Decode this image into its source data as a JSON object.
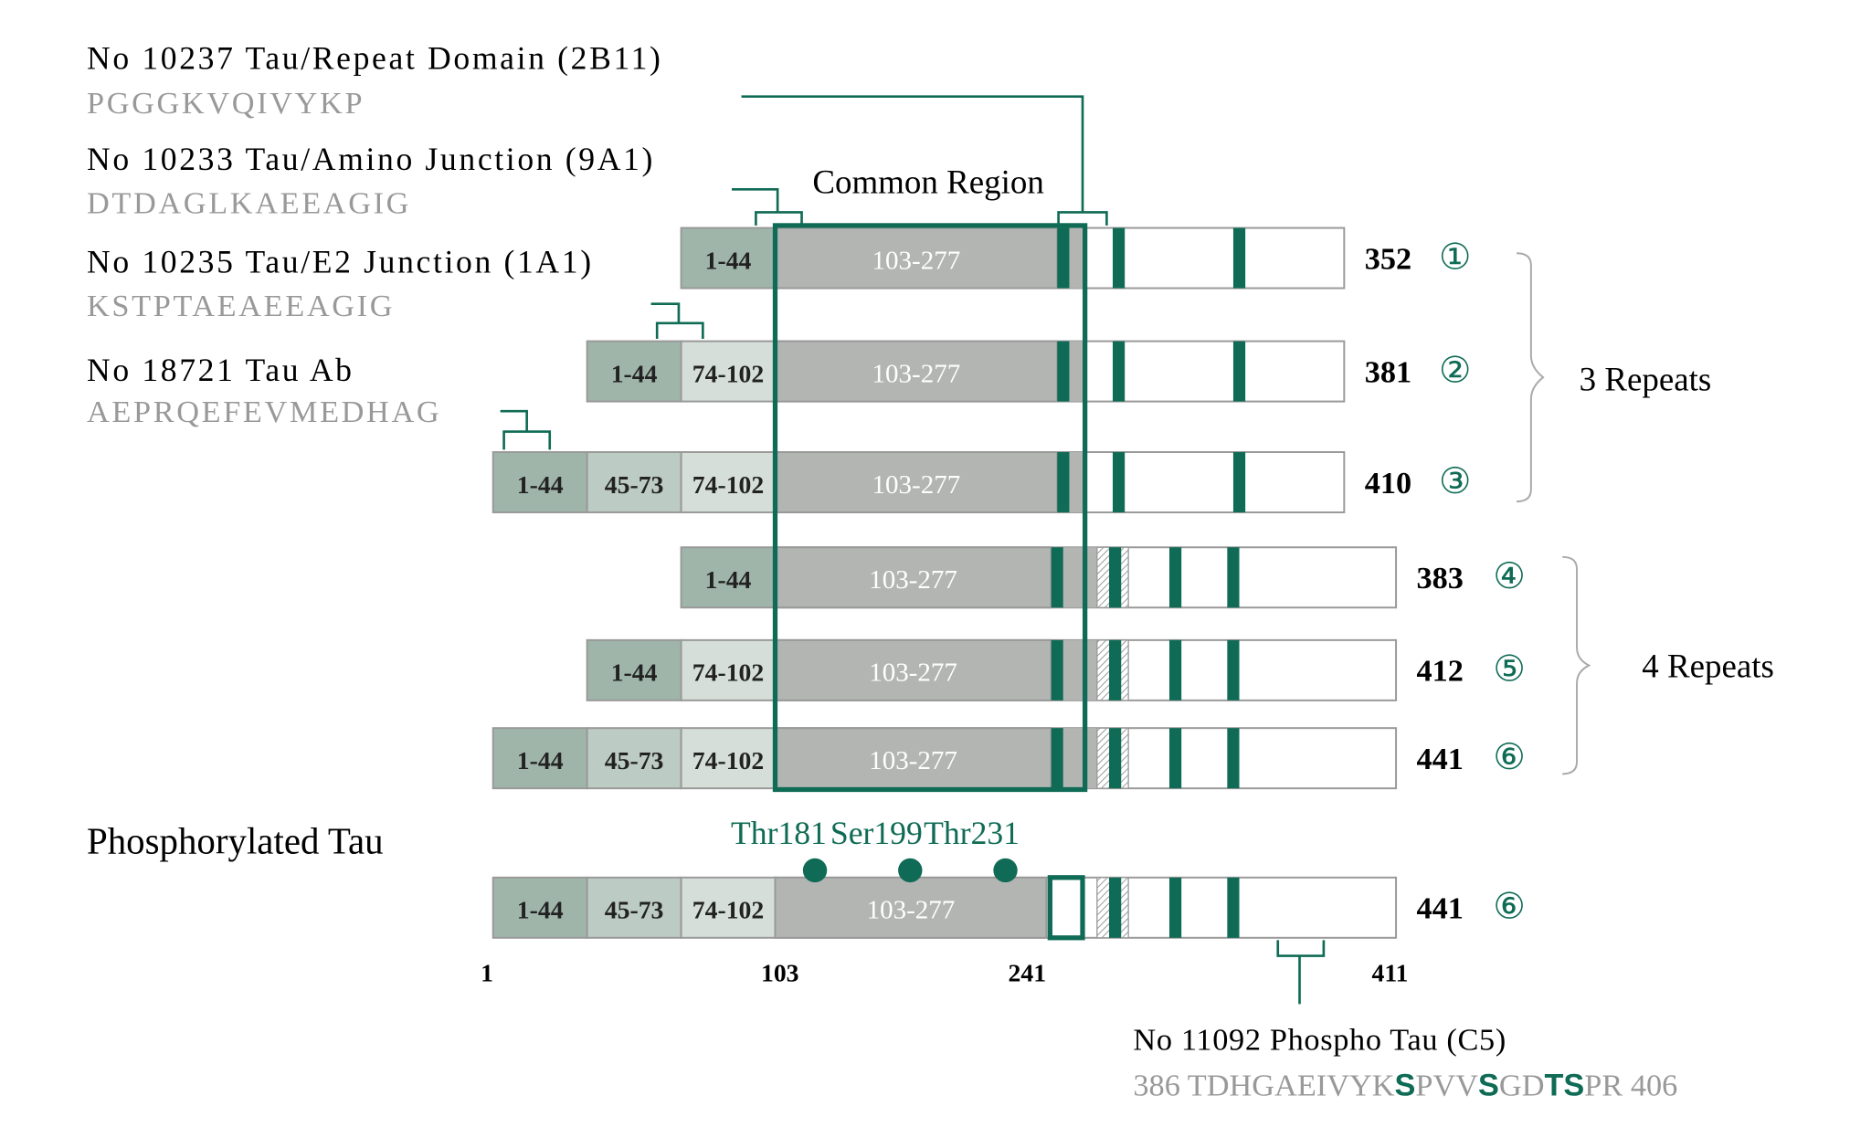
{
  "antibodies": [
    {
      "title": "No 10237 Tau/Repeat Domain (2B11)",
      "sequence": "PGGGKVQIVYKP"
    },
    {
      "title": "No 10233 Tau/Amino Junction (9A1)",
      "sequence": "DTDAGLKAEEAGIG"
    },
    {
      "title": "No 10235 Tau/E2 Junction (1A1)",
      "sequence": "KSTPTAEAEEAGIG"
    },
    {
      "title": "No 18721 Tau Ab",
      "sequence": "AEPRQEFEVMEDHAG"
    }
  ],
  "common_region_label": "Common Region",
  "isoform_groups": [
    {
      "label": "3 Repeats",
      "isoforms": [
        {
          "segments": [
            "1-44",
            "103-277"
          ],
          "length": 352,
          "number": "①"
        },
        {
          "segments": [
            "1-44",
            "74-102",
            "103-277"
          ],
          "length": 381,
          "number": "②"
        },
        {
          "segments": [
            "1-44",
            "45-73",
            "74-102",
            "103-277"
          ],
          "length": 410,
          "number": "③"
        }
      ]
    },
    {
      "label": "4 Repeats",
      "isoforms": [
        {
          "segments": [
            "1-44",
            "103-277"
          ],
          "length": 383,
          "number": "④"
        },
        {
          "segments": [
            "1-44",
            "74-102",
            "103-277"
          ],
          "length": 412,
          "number": "⑤"
        },
        {
          "segments": [
            "1-44",
            "45-73",
            "74-102",
            "103-277"
          ],
          "length": 441,
          "number": "⑥"
        }
      ]
    }
  ],
  "phospho": {
    "title": "Phosphorylated Tau",
    "sites": [
      "Thr181",
      "Ser199",
      "Thr231"
    ],
    "isoform": {
      "segments": [
        "1-44",
        "45-73",
        "74-102",
        "103-277"
      ],
      "length": 441,
      "number": "⑥"
    },
    "axis_labels": [
      1,
      103,
      241,
      411
    ],
    "antibody": {
      "title": "No 11092 Phospho Tau (C5)",
      "sequence": [
        "386 TDHGAEIVYK",
        "S",
        "PVV",
        "S",
        "GD",
        "TS",
        "PR 406"
      ]
    }
  }
}
